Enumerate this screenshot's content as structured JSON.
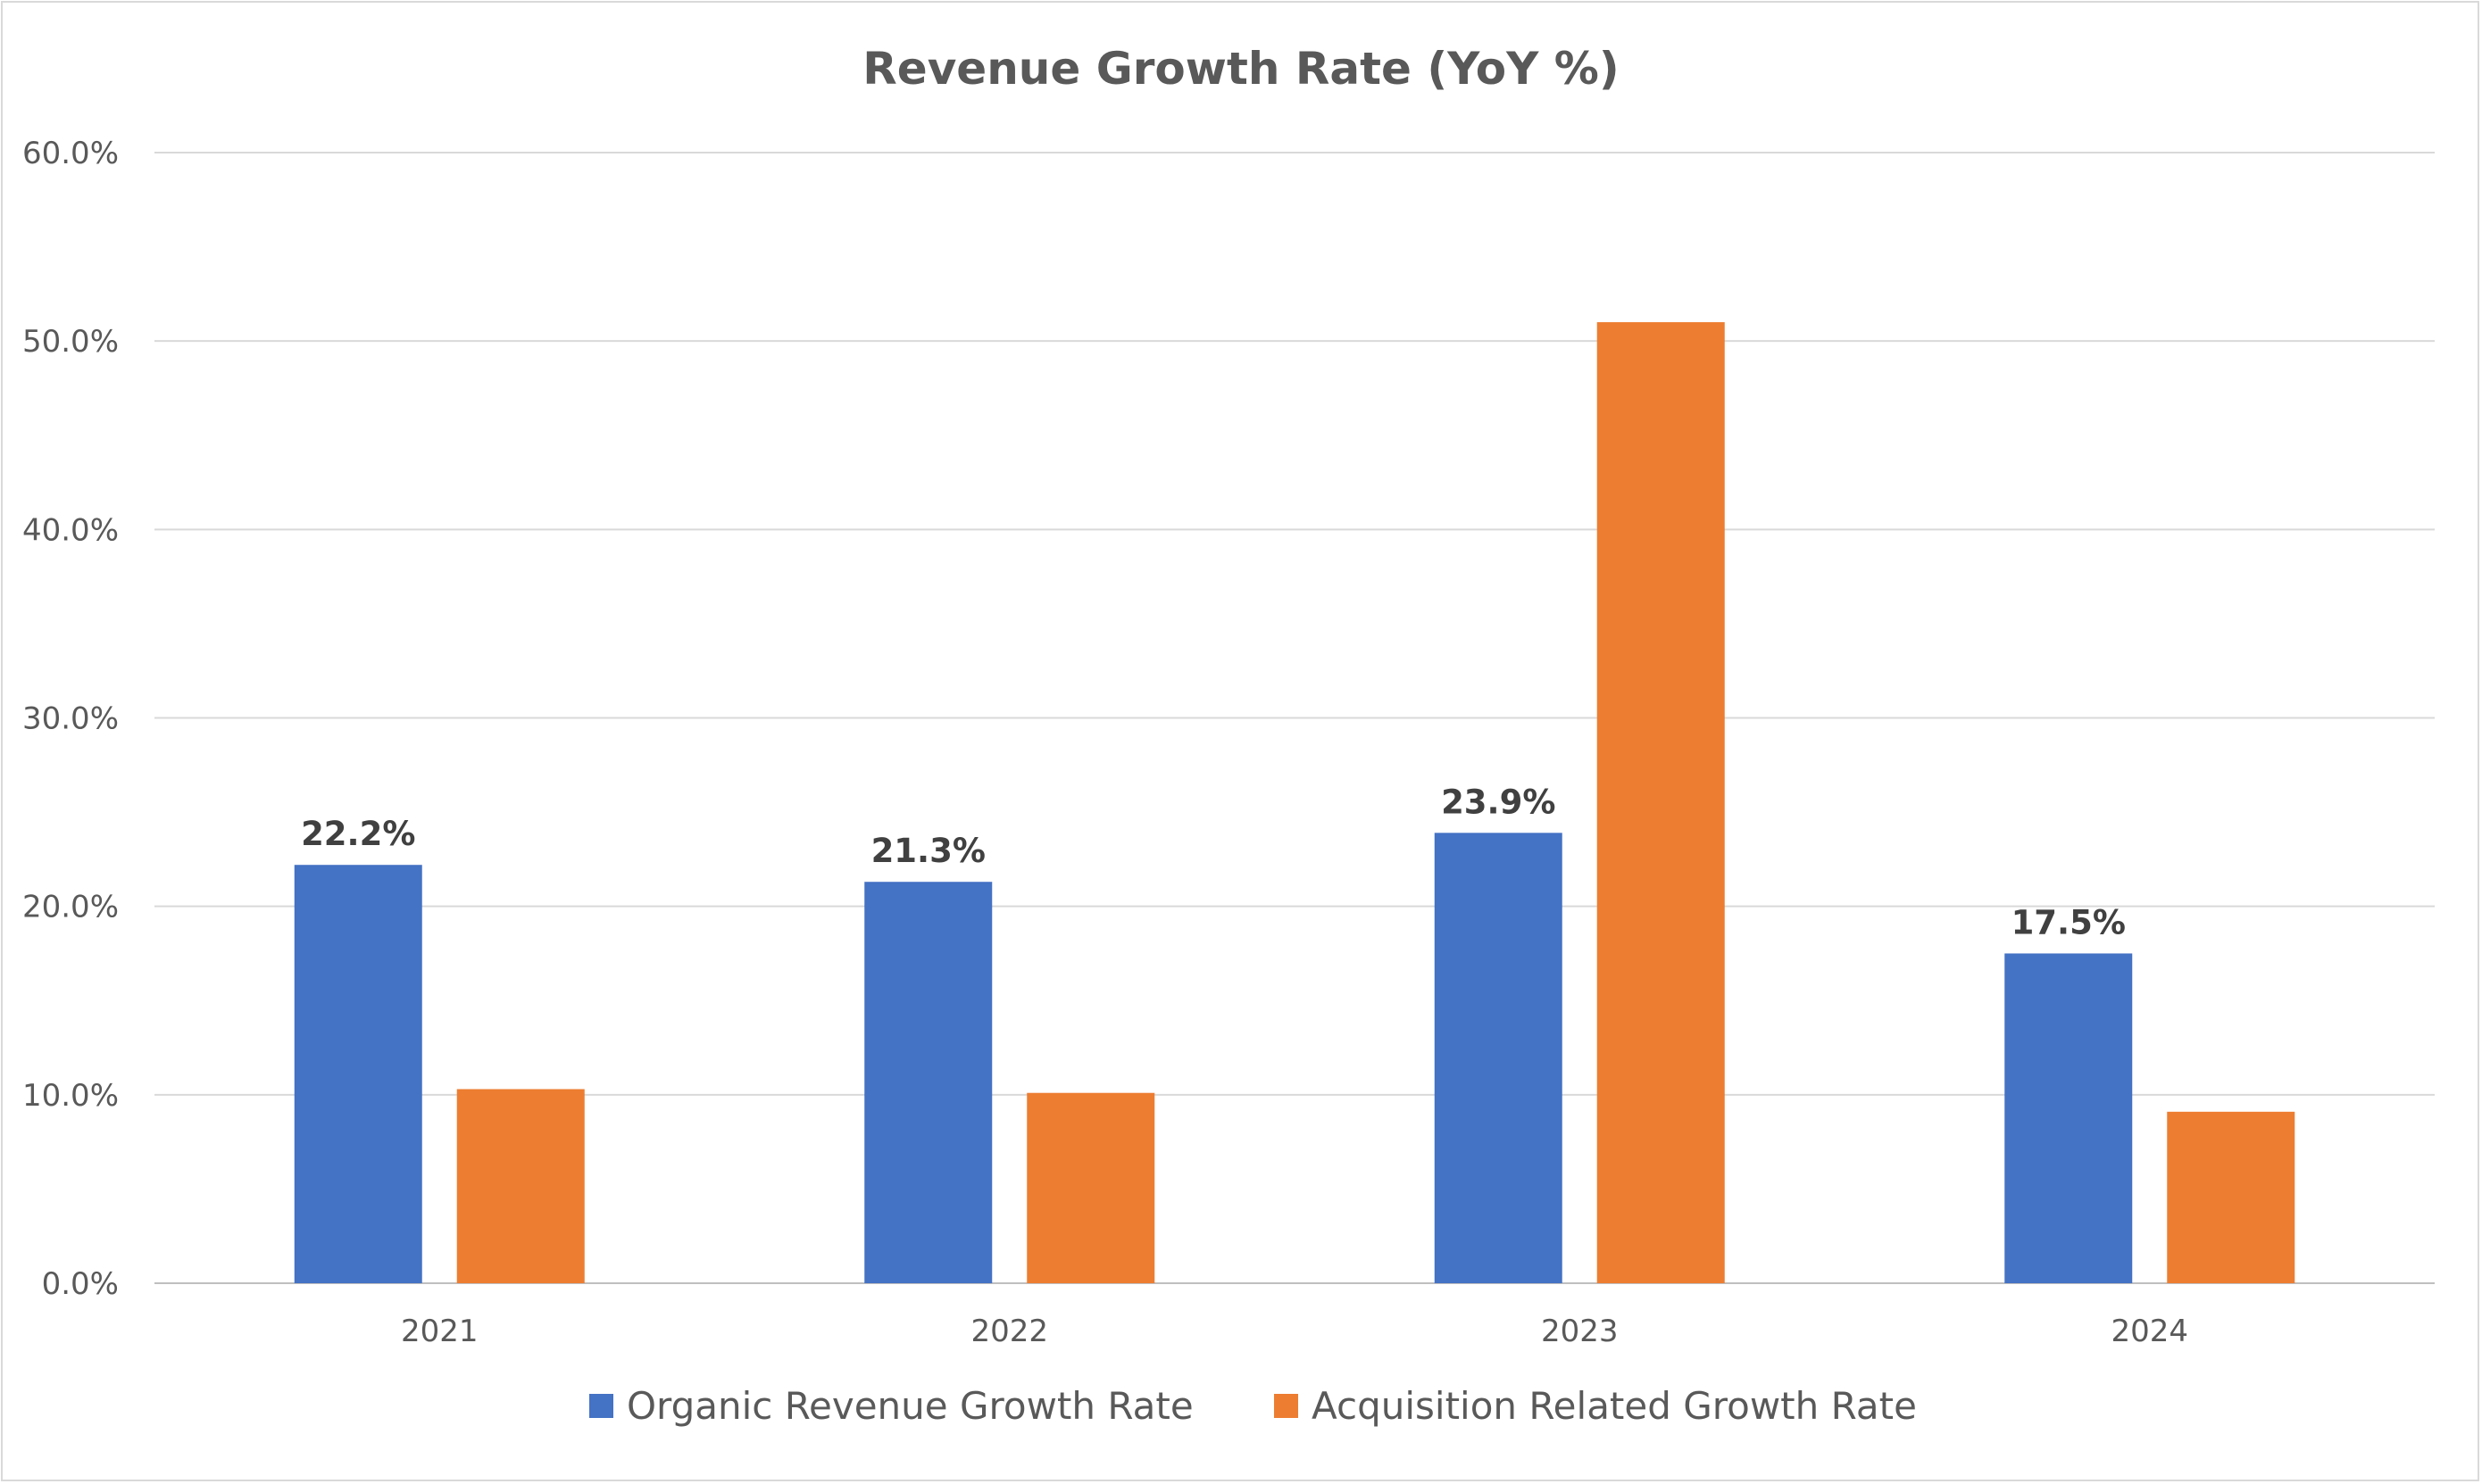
{
  "chart_data": {
    "type": "bar",
    "title": "Revenue Growth Rate (YoY %)",
    "categories": [
      "2021",
      "2022",
      "2023",
      "2024"
    ],
    "series": [
      {
        "name": "Organic Revenue Growth Rate",
        "color": "#4472C4",
        "values": [
          22.2,
          21.3,
          23.9,
          17.5
        ],
        "labels": [
          "22.2%",
          "21.3%",
          "23.9%",
          "17.5%"
        ]
      },
      {
        "name": "Acquisition Related Growth Rate",
        "color": "#ED7D31",
        "values": [
          10.3,
          10.1,
          51.0,
          9.1
        ],
        "labels": []
      }
    ],
    "yticks": [
      "0.0%",
      "10.0%",
      "20.0%",
      "30.0%",
      "40.0%",
      "50.0%",
      "60.0%"
    ],
    "ylim": [
      0,
      60
    ],
    "grid": true,
    "legend": "bottom"
  }
}
